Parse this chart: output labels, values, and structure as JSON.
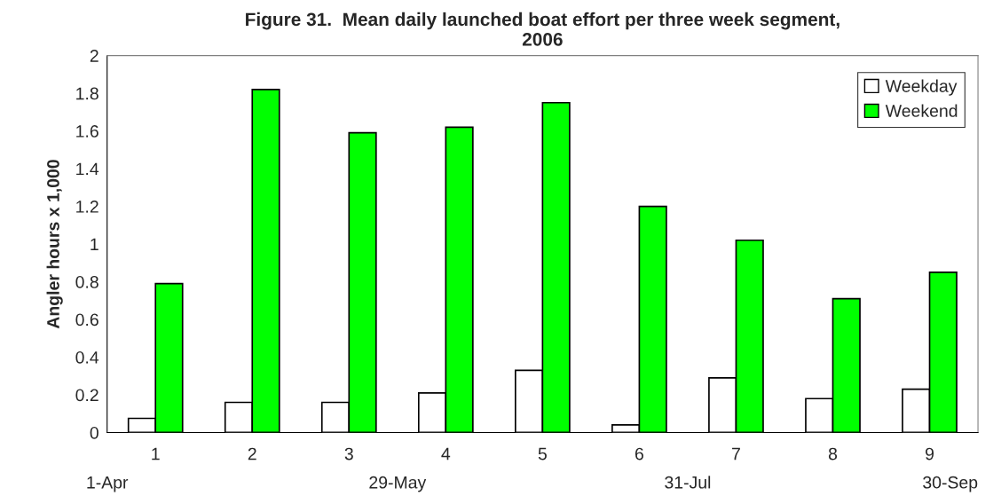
{
  "chart_data": {
    "type": "bar",
    "title": "Figure 31.  Mean daily launched boat effort per three week segment,\n2006",
    "ylabel": "Angler hours x 1,000",
    "categories": [
      "1",
      "2",
      "3",
      "4",
      "5",
      "6",
      "7",
      "8",
      "9"
    ],
    "series": [
      {
        "name": "Weekday",
        "color": "#ffffff",
        "values": [
          0.075,
          0.16,
          0.16,
          0.21,
          0.33,
          0.04,
          0.29,
          0.18,
          0.23
        ]
      },
      {
        "name": "Weekend",
        "color": "#00ff00",
        "values": [
          0.79,
          1.82,
          1.59,
          1.62,
          1.75,
          1.2,
          1.02,
          0.71,
          0.85
        ]
      }
    ],
    "ylim": [
      0,
      2
    ],
    "yticks": [
      0,
      0.2,
      0.4,
      0.6,
      0.8,
      1,
      1.2,
      1.4,
      1.6,
      1.8,
      2
    ],
    "grid": false,
    "legend": "top right",
    "annotations": [
      "1-Apr",
      "29-May",
      "31-Jul",
      "30-Sep"
    ]
  }
}
